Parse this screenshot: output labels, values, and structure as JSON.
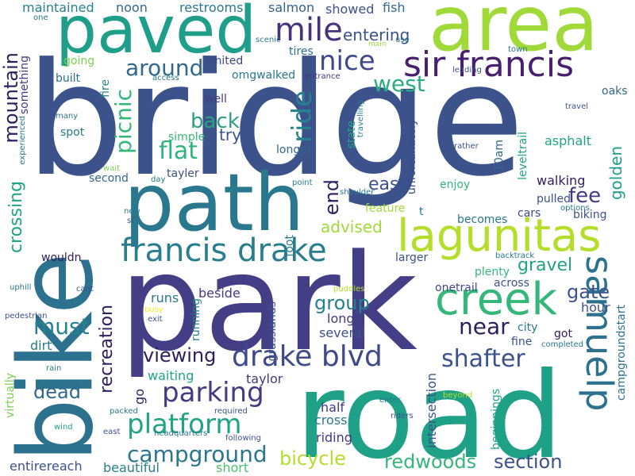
{
  "word_cloud": {
    "background": "#ffffff",
    "palette": {
      "green": "#a0da39",
      "teal": "#1fa187",
      "blue": "#33638d",
      "indigo": "#443a83",
      "purple": "#481f70",
      "light_green": "#4ac16d"
    },
    "words": {
      "bridge": "bridge",
      "park": "park",
      "road": "road",
      "bike": "bike",
      "path": "path",
      "area": "area",
      "paved": "paved",
      "lagunitas": "lagunitas",
      "creek": "creek",
      "sir_francis": "sir francis",
      "samuel_p": "samuelp",
      "francis_drake": "francis drake",
      "drake_blvd": "drake blvd",
      "parking": "parking",
      "platform": "platform",
      "campground": "campground",
      "mile": "mile",
      "nice": "nice",
      "around": "around",
      "flat": "flat",
      "back": "back",
      "ride": "ride",
      "west": "west",
      "entering": "entering",
      "picnic": "picnic",
      "mountain": "mountain",
      "maintained": "maintained",
      "noon": "noon",
      "restrooms": "restrooms",
      "salmon": "salmon",
      "showed": "showed",
      "fish": "fish",
      "scenic": "scenic",
      "main": "main",
      "use": "use",
      "one": "one",
      "something": "something",
      "going": "going",
      "built": "built",
      "limited": "limited",
      "tires": "tires",
      "town": "town",
      "leading": "leading",
      "access": "access",
      "entrance": "entrance",
      "omgwalked": "omgwalked",
      "fire": "fire",
      "many": "many",
      "well": "well",
      "try": "try",
      "oaks": "oaks",
      "experienced": "experienced",
      "spot": "spot",
      "simple": "simple",
      "longer": "longer",
      "state": "state",
      "travelling": "travelling",
      "unfortunately": "unfortunately",
      "travel": "travel",
      "10am": "10am",
      "leveltrail": "leveltrail",
      "asphalt": "asphalt",
      "rather": "rather",
      "golden": "golden",
      "wait": "wait",
      "day": "day",
      "tayler": "tayler",
      "second": "second",
      "point": "point",
      "shoulder": "shoulder",
      "easy": "easy",
      "enjoy": "enjoy",
      "walking": "walking",
      "fee": "fee",
      "end": "end",
      "crossing": "crossing",
      "pulled": "pulled",
      "options": "options",
      "biking": "biking",
      "cars": "cars",
      "feature": "feature",
      "t": "t",
      "new": "new",
      "sf": "sf",
      "advised": "advised",
      "becomes": "becomes",
      "gravel": "gravel",
      "gate": "gate",
      "backtrack": "backtrack",
      "larger": "larger",
      "foot": "foot",
      "wouldnt": "wouldn",
      "plenty": "plenty",
      "onetrail": "onetrail",
      "across": "across",
      "uphill": "uphill",
      "cant": "cant",
      "must": "must",
      "recreation": "recreation",
      "grasslands": "grasslands",
      "puddles": "puddles",
      "busy": "busy",
      "exit": "exit",
      "beside": "beside",
      "runs": "runs",
      "group": "group",
      "near": "near",
      "hour": "hour",
      "campgroundstart": "campgroundstart",
      "pedestrian": "pedestrian",
      "running": "running",
      "long": "long",
      "fine": "fine",
      "city": "city",
      "got": "got",
      "completed": "completed",
      "dirt": "dirt",
      "several": "several",
      "viewing": "viewing",
      "shafter": "shafter",
      "dead": "dead",
      "waiting": "waiting",
      "rain": "rain",
      "go": "go",
      "taylor": "taylor",
      "intersection": "intersection",
      "beyond": "beyond",
      "virtually": "virtually",
      "packed": "packed",
      "required": "required",
      "enter": "enter",
      "riders": "riders",
      "half": "half",
      "beginnings": "beginnings",
      "wind": "wind",
      "east": "east",
      "headquarters": "headquarters",
      "following": "following",
      "cross": "cross",
      "riding": "riding",
      "bicycle": "bicycle",
      "redwoods": "redwoods",
      "section": "section",
      "entirereach": "entirereach",
      "beautiful": "beautiful",
      "short": "short"
    }
  }
}
